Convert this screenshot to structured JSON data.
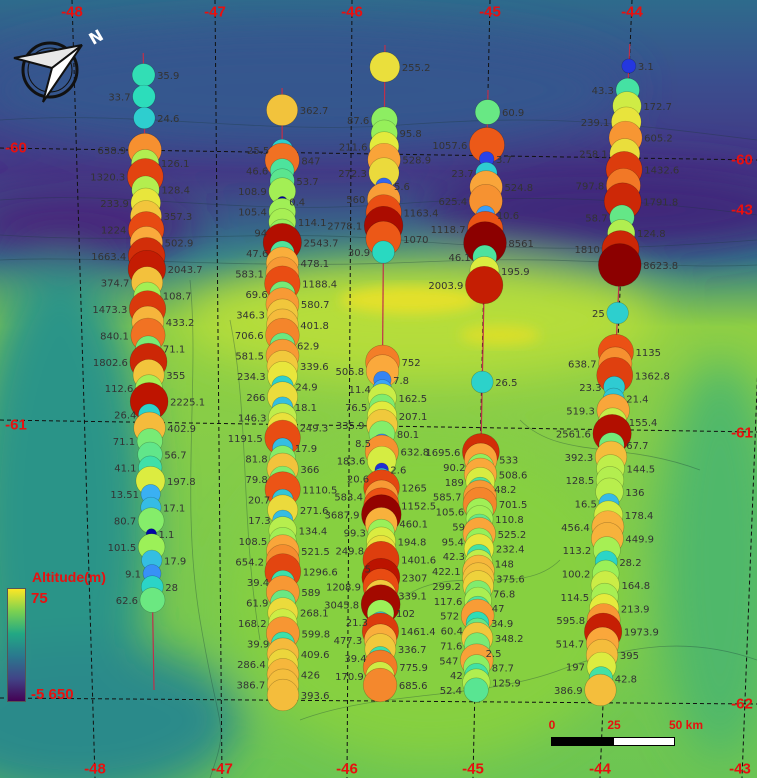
{
  "legend": {
    "title": "Altitude(m)",
    "max_label": "75",
    "min_label": "-5 650",
    "colormap": [
      "#fde725",
      "#7ad151",
      "#22a884",
      "#2a788e",
      "#414487",
      "#440154"
    ]
  },
  "scale_bar": {
    "labels": [
      "0",
      "25",
      "50 km"
    ]
  },
  "compass": {
    "north_label": "N"
  },
  "grid_labels": {
    "top": [
      "-48",
      "-47",
      "-46",
      "-45",
      "-44"
    ],
    "bottom": [
      "-48",
      "-47",
      "-46",
      "-45",
      "-44",
      "-43"
    ],
    "left": [
      "-60",
      "-61"
    ],
    "right": [
      "-60",
      "-43",
      "-61",
      "-62"
    ]
  },
  "colors": {
    "label_red": "#e8100f",
    "track_line": "#c0304a"
  },
  "transects": [
    {
      "values": [
        "35.9",
        "33.7",
        "24.6",
        "638.9",
        "126.1",
        "1320.3",
        "128.4",
        "233.9",
        "357.3",
        "1224",
        "502.9",
        "1663.4",
        "2043.7",
        "374.7",
        "108.7",
        "1473.3",
        "433.2",
        "840.1",
        "71.1",
        "1802.6",
        "355",
        "112.6",
        "2225.1",
        "26.4",
        "402.9",
        "71.1",
        "56.7",
        "41.1",
        "197.8",
        "13.51",
        "17.1",
        "80.7",
        "1.1",
        "101.5",
        "17.9",
        "9.1",
        "28",
        "62.6"
      ]
    },
    {
      "values": [
        "362.7",
        "25.5",
        "847",
        "46.6",
        "53.7",
        "108.9",
        "0.4",
        "105.4",
        "114.1",
        "94",
        "2543.7",
        "47.6",
        "478.1",
        "583.1",
        "1188.4",
        "69.6",
        "580.7",
        "346.3",
        "401.8",
        "706.6",
        "62.9",
        "581.5",
        "339.6",
        "234.3",
        "24.9",
        "266",
        "18.1",
        "146.3",
        "249.3",
        "1191.5",
        "17.9",
        "81.8",
        "366",
        "79.8",
        "1110.5",
        "20.7",
        "271.6",
        "17.3",
        "134.4",
        "108.5",
        "521.5",
        "654.2",
        "1296.6",
        "39.4",
        "589",
        "61.9",
        "268.1",
        "168.2",
        "599.8",
        "39.9",
        "409.6",
        "286.4",
        "426",
        "386.7",
        "393.6"
      ]
    },
    {
      "values": [
        "255.2",
        "87.6",
        "95.8",
        "211.6",
        "528.9",
        "272.3",
        "5.6",
        "560",
        "1163.4",
        "2778.1",
        "1070",
        "30.9",
        "752",
        "505.8",
        "7.8",
        "11.4",
        "162.5",
        "76.5",
        "207.1",
        "335.9",
        "80.1",
        "8.5",
        "632.8",
        "183.6",
        "2.6",
        "20.6",
        "1265",
        "583.4",
        "1152.5",
        "3687.9",
        "460.1",
        "99.3",
        "194.8",
        "249.8",
        "1401.6",
        "5",
        "2307",
        "1208.9",
        "339.1",
        "3045.8",
        "102",
        "21.3",
        "1461.4",
        "477.3",
        "336.7",
        "39.4",
        "775.9",
        "170.9",
        "685.6"
      ]
    },
    {
      "values": [
        "60.9",
        "1057.6",
        "3.7",
        "23.7",
        "524.8",
        "625.4",
        "10.6",
        "1118.7",
        "8561",
        "46.1",
        "195.9",
        "2003.9",
        "26.5",
        "1695.6",
        "533",
        "90.2",
        "508.6",
        "189",
        "48.2",
        "585.7",
        "701.5",
        "105.6",
        "110.8",
        "59",
        "525.2",
        "95.4",
        "232.4",
        "42.3",
        "148",
        "422.1",
        "375.6",
        "299.2",
        "76.8",
        "117.6",
        "47",
        "572",
        "34.9",
        "60.4",
        "348.2",
        "71.6",
        "2.5",
        "547",
        "87.7",
        "42",
        "125.9",
        "52.4"
      ]
    },
    {
      "values": [
        "3.1",
        "43.3",
        "172.7",
        "239.1",
        "605.2",
        "258.1",
        "1432.6",
        "797.8",
        "1791.8",
        "58.7",
        "124.8",
        "1810",
        "8623.8",
        "25",
        "1135",
        "638.7",
        "1362.8",
        "23.3",
        "21.4",
        "519.3",
        "155.4",
        "2561.6",
        "67.7",
        "392.3",
        "144.5",
        "128.5",
        "136",
        "16.5",
        "178.4",
        "456.4",
        "449.9",
        "113.2",
        "28.2",
        "100.2",
        "164.8",
        "114.5",
        "213.9",
        "595.8",
        "1973.9",
        "514.7",
        "395",
        "197",
        "42.8",
        "386.9"
      ]
    }
  ]
}
